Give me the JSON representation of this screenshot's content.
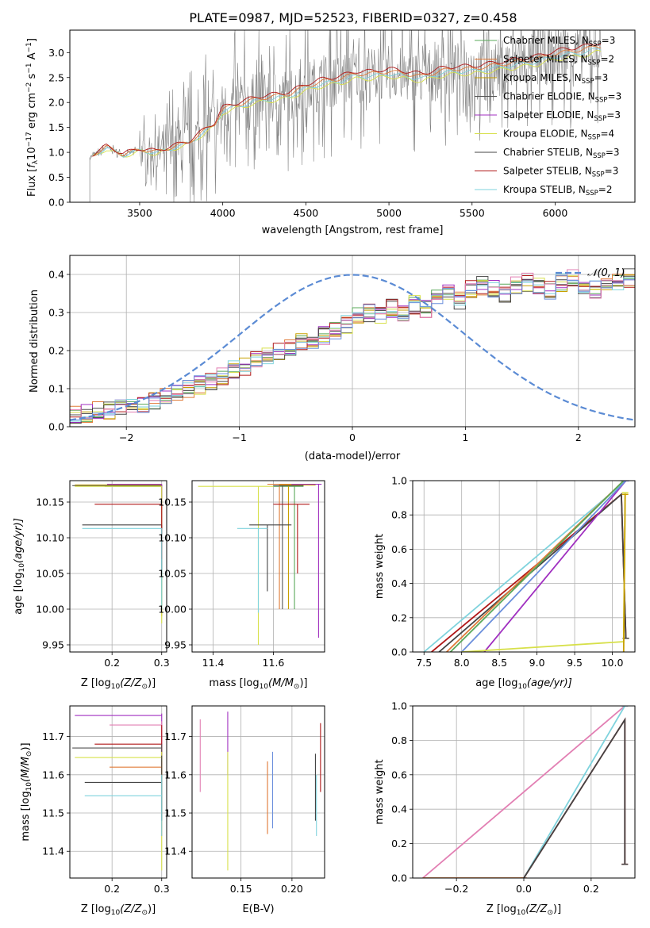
{
  "title": "PLATE=0987, MJD=52523, FIBERID=0327, z=0.458",
  "colors": {
    "Chabrier MILES": "#5aa85a",
    "Salpeter MILES": "#e07b39",
    "Kroupa MILES": "#c8a000",
    "Chabrier ELODIE": "#555555",
    "Salpeter ELODIE": "#a02fc0",
    "Kroupa ELODIE": "#d7e04a",
    "Chabrier STELIB": "#444444",
    "Salpeter STELIB": "#b01818",
    "Kroupa STELIB": "#7fd3dd",
    "data": "#808080",
    "normal": "#5b8bd4",
    "pink": "#e27fb3",
    "blue": "#6b8fdc"
  },
  "chart_data": [
    {
      "id": "spectrum",
      "type": "line",
      "ylabel": "Flux [f_λ10^-17 erg cm^-2 s^-1 A^-1]",
      "xlabel": "wavelength [Angstrom, rest frame]",
      "xlim": [
        3080,
        6480
      ],
      "ylim": [
        0,
        3.45
      ],
      "xticks": [
        3500,
        4000,
        4500,
        5000,
        5500,
        6000
      ],
      "yticks": [
        0.0,
        0.5,
        1.0,
        1.5,
        2.0,
        2.5,
        3.0
      ],
      "grid": false,
      "legend_position": "top-right",
      "legend": [
        {
          "label": "Chabrier MILES, N_SSP=3",
          "main": "Chabrier MILES, N",
          "sub": "SSP",
          "tail": "=3",
          "key": "Chabrier MILES"
        },
        {
          "label": "Salpeter MILES, N_SSP=2",
          "main": "Salpeter MILES, N",
          "sub": "SSP",
          "tail": "=2",
          "key": "Salpeter MILES"
        },
        {
          "label": "Kroupa MILES, N_SSP=3",
          "main": "Kroupa MILES, N",
          "sub": "SSP",
          "tail": "=3",
          "key": "Kroupa MILES"
        },
        {
          "label": "Chabrier ELODIE, N_SSP=3",
          "main": "Chabrier ELODIE, N",
          "sub": "SSP",
          "tail": "=3",
          "key": "Chabrier ELODIE"
        },
        {
          "label": "Salpeter ELODIE, N_SSP=3",
          "main": "Salpeter ELODIE, N",
          "sub": "SSP",
          "tail": "=3",
          "key": "Salpeter ELODIE"
        },
        {
          "label": "Kroupa ELODIE, N_SSP=4",
          "main": "Kroupa ELODIE, N",
          "sub": "SSP",
          "tail": "=4",
          "key": "Kroupa ELODIE"
        },
        {
          "label": "Chabrier STELIB, N_SSP=3",
          "main": "Chabrier STELIB, N",
          "sub": "SSP",
          "tail": "=3",
          "key": "Chabrier STELIB"
        },
        {
          "label": "Salpeter STELIB, N_SSP=3",
          "main": "Salpeter STELIB, N",
          "sub": "SSP",
          "tail": "=3",
          "key": "Salpeter STELIB"
        },
        {
          "label": "Kroupa STELIB, N_SSP=2",
          "main": "Kroupa STELIB, N",
          "sub": "SSP",
          "tail": "=2",
          "key": "Kroupa STELIB"
        }
      ],
      "continuum": [
        [
          3200,
          0.9
        ],
        [
          3300,
          1.1
        ],
        [
          3400,
          0.95
        ],
        [
          3500,
          1.05
        ],
        [
          3600,
          1.0
        ],
        [
          3700,
          1.1
        ],
        [
          3800,
          1.2
        ],
        [
          3900,
          1.45
        ],
        [
          3950,
          1.55
        ],
        [
          4000,
          1.85
        ],
        [
          4100,
          1.95
        ],
        [
          4200,
          2.05
        ],
        [
          4300,
          2.1
        ],
        [
          4400,
          2.15
        ],
        [
          4500,
          2.3
        ],
        [
          4600,
          2.4
        ],
        [
          4700,
          2.45
        ],
        [
          4800,
          2.55
        ],
        [
          4900,
          2.55
        ],
        [
          5000,
          2.6
        ],
        [
          5100,
          2.55
        ],
        [
          5200,
          2.5
        ],
        [
          5300,
          2.6
        ],
        [
          5400,
          2.65
        ],
        [
          5500,
          2.65
        ],
        [
          5600,
          2.7
        ],
        [
          5700,
          2.75
        ],
        [
          5800,
          2.8
        ],
        [
          5900,
          2.85
        ],
        [
          6000,
          2.95
        ],
        [
          6100,
          3.0
        ],
        [
          6200,
          3.05
        ],
        [
          6250,
          3.1
        ]
      ]
    },
    {
      "id": "residuals",
      "type": "histogram",
      "ylabel": "Normed distribution",
      "xlabel": "(data-model)/error",
      "xlim": [
        -2.5,
        2.5
      ],
      "ylim": [
        0,
        0.45
      ],
      "xticks": [
        -2,
        -1,
        0,
        1,
        2
      ],
      "yticks": [
        0.0,
        0.1,
        0.2,
        0.3,
        0.4
      ],
      "grid": true,
      "legend": [
        {
          "label": "N(0,1)",
          "key": "normal"
        }
      ],
      "bin_width": 0.1,
      "mean_hist": [
        0.03,
        0.035,
        0.045,
        0.04,
        0.05,
        0.055,
        0.06,
        0.07,
        0.085,
        0.09,
        0.1,
        0.11,
        0.12,
        0.13,
        0.15,
        0.16,
        0.18,
        0.19,
        0.2,
        0.21,
        0.22,
        0.23,
        0.24,
        0.25,
        0.27,
        0.29,
        0.3,
        0.29,
        0.31,
        0.3,
        0.32,
        0.31,
        0.34,
        0.35,
        0.33,
        0.36,
        0.37,
        0.36,
        0.35,
        0.37,
        0.38,
        0.37,
        0.36,
        0.38,
        0.39,
        0.37,
        0.36,
        0.37,
        0.38,
        0.39,
        0.38,
        0.37,
        0.36,
        0.35,
        0.34,
        0.33,
        0.34,
        0.32,
        0.31,
        0.3,
        0.31,
        0.29,
        0.27,
        0.28,
        0.26,
        0.25,
        0.24,
        0.23,
        0.22,
        0.21,
        0.2,
        0.19,
        0.18,
        0.17,
        0.16,
        0.15,
        0.14,
        0.13,
        0.12,
        0.11,
        0.11,
        0.1,
        0.1,
        0.09,
        0.09,
        0.08,
        0.08,
        0.08,
        0.075,
        0.07,
        0.07,
        0.065,
        0.06,
        0.06,
        0.055,
        0.05,
        0.05,
        0.045,
        0.04,
        0.04
      ]
    },
    {
      "id": "age-vs-z",
      "type": "errorbar",
      "xlabel": "Z [log10(Z/Z⊙)]",
      "ylabel": "age [log10(age/yr)]",
      "xlim": [
        0.115,
        0.31
      ],
      "ylim": [
        9.94,
        10.18
      ],
      "xticks": [
        0.2,
        0.3
      ],
      "yticks": [
        9.95,
        10.0,
        10.05,
        10.1,
        10.15
      ],
      "grid": true,
      "points": [
        {
          "key": "Chabrier MILES",
          "x": 0.3,
          "y": 10.172,
          "xerr": [
            0.185,
            0.3
          ],
          "yerr": [
            10.12,
            10.172
          ]
        },
        {
          "key": "Salpeter MILES",
          "x": 0.3,
          "y": 10.175,
          "xerr": [
            0.195,
            0.3
          ],
          "yerr": [
            10.11,
            10.175
          ]
        },
        {
          "key": "Kroupa MILES",
          "x": 0.3,
          "y": 10.174,
          "xerr": [
            0.125,
            0.3
          ],
          "yerr": [
            9.99,
            10.174
          ]
        },
        {
          "key": "Chabrier ELODIE",
          "x": 0.3,
          "y": 10.173,
          "xerr": [
            0.12,
            0.3
          ],
          "yerr": [
            10.0,
            10.173
          ]
        },
        {
          "key": "Salpeter ELODIE",
          "x": 0.3,
          "y": 10.175,
          "xerr": [
            0.19,
            0.3
          ],
          "yerr": [
            10.05,
            10.175
          ]
        },
        {
          "key": "Kroupa ELODIE",
          "x": 0.3,
          "y": 10.172,
          "xerr": [
            0.125,
            0.3
          ],
          "yerr": [
            9.98,
            10.172
          ]
        },
        {
          "key": "Chabrier STELIB",
          "x": 0.3,
          "y": 10.118,
          "xerr": [
            0.14,
            0.3
          ],
          "yerr": [
            10.05,
            10.118
          ]
        },
        {
          "key": "Salpeter STELIB",
          "x": 0.3,
          "y": 10.147,
          "xerr": [
            0.165,
            0.3
          ],
          "yerr": [
            10.07,
            10.147
          ]
        },
        {
          "key": "Kroupa STELIB",
          "x": 0.3,
          "y": 10.113,
          "xerr": [
            0.14,
            0.3
          ],
          "yerr": [
            10.0,
            10.113
          ]
        }
      ]
    },
    {
      "id": "age-vs-mass",
      "type": "errorbar",
      "xlabel": "mass [log10(M/M⊙)]",
      "ylabel": "",
      "xlim": [
        11.33,
        11.77
      ],
      "ylim": [
        9.94,
        10.18
      ],
      "xticks": [
        11.4,
        11.6
      ],
      "yticks": [
        9.95,
        10.0,
        10.05,
        10.1,
        10.15
      ],
      "grid": true,
      "points": [
        {
          "key": "Chabrier MILES",
          "x": 11.67,
          "y": 10.172,
          "xerr": [
            11.6,
            11.7
          ],
          "yerr": [
            10.0,
            10.172
          ]
        },
        {
          "key": "Salpeter MILES",
          "x": 11.62,
          "y": 10.175,
          "xerr": [
            11.58,
            11.68
          ],
          "yerr": [
            10.0,
            10.175
          ]
        },
        {
          "key": "Kroupa MILES",
          "x": 11.65,
          "y": 10.174,
          "xerr": [
            11.62,
            11.74
          ],
          "yerr": [
            10.0,
            10.174
          ]
        },
        {
          "key": "Chabrier ELODIE",
          "x": 11.63,
          "y": 10.173,
          "xerr": [
            11.6,
            11.7
          ],
          "yerr": [
            10.0,
            10.173
          ]
        },
        {
          "key": "Salpeter ELODIE",
          "x": 11.75,
          "y": 10.175,
          "xerr": [
            11.66,
            11.76
          ],
          "yerr": [
            9.96,
            10.175
          ]
        },
        {
          "key": "Kroupa ELODIE",
          "x": 11.55,
          "y": 10.172,
          "xerr": [
            11.35,
            11.6
          ],
          "yerr": [
            9.95,
            10.172
          ]
        },
        {
          "key": "Chabrier STELIB",
          "x": 11.58,
          "y": 10.118,
          "xerr": [
            11.52,
            11.66
          ],
          "yerr": [
            10.025,
            10.118
          ]
        },
        {
          "key": "Salpeter STELIB",
          "x": 11.68,
          "y": 10.147,
          "xerr": [
            11.6,
            11.72
          ],
          "yerr": [
            10.05,
            10.147
          ]
        },
        {
          "key": "Kroupa STELIB",
          "x": 11.55,
          "y": 10.113,
          "xerr": [
            11.48,
            11.58
          ],
          "yerr": [
            9.995,
            10.113
          ]
        }
      ]
    },
    {
      "id": "weight-vs-age",
      "type": "line",
      "xlabel": "age [log10(age/yr)]",
      "ylabel": "mass weight",
      "xlim": [
        7.35,
        10.3
      ],
      "ylim": [
        0,
        1.0
      ],
      "xticks": [
        7.5,
        8.0,
        8.5,
        9.0,
        9.5,
        10.0
      ],
      "yticks": [
        0.0,
        0.2,
        0.4,
        0.6,
        0.8,
        1.0
      ],
      "grid": true,
      "series": [
        {
          "key": "Kroupa STELIB",
          "x": [
            7.5,
            10.18
          ],
          "y": [
            0.0,
            1.0
          ]
        },
        {
          "key": "Salpeter STELIB",
          "x": [
            7.6,
            10.12,
            10.18
          ],
          "y": [
            0.0,
            0.92,
            0.08
          ]
        },
        {
          "key": "Chabrier STELIB",
          "x": [
            7.7,
            10.12,
            10.18
          ],
          "y": [
            0.0,
            0.92,
            0.08
          ]
        },
        {
          "key": "Salpeter MILES",
          "x": [
            7.8,
            10.15
          ],
          "y": [
            0.0,
            1.0
          ]
        },
        {
          "key": "Chabrier MILES",
          "x": [
            7.85,
            10.15
          ],
          "y": [
            0.0,
            1.0
          ]
        },
        {
          "key": "Salpeter ELODIE",
          "x": [
            8.3,
            10.18
          ],
          "y": [
            0.0,
            1.0
          ]
        },
        {
          "key": "blue",
          "x": [
            8.0,
            10.18
          ],
          "y": [
            0.0,
            1.0
          ]
        },
        {
          "key": "Kroupa ELODIE",
          "x": [
            8.0,
            10.15,
            10.17
          ],
          "y": [
            0.0,
            0.06,
            0.93
          ]
        },
        {
          "key": "Kroupa MILES",
          "x": [
            10.15,
            10.17
          ],
          "y": [
            0.0,
            0.92
          ]
        }
      ]
    },
    {
      "id": "mass-vs-z",
      "type": "errorbar",
      "xlabel": "Z [log10(Z/Z⊙)]",
      "ylabel": "mass [log10(M/M⊙)]",
      "xlim": [
        0.115,
        0.31
      ],
      "ylim": [
        11.33,
        11.78
      ],
      "xticks": [
        0.2,
        0.3
      ],
      "yticks": [
        11.4,
        11.5,
        11.6,
        11.7
      ],
      "grid": true,
      "points": [
        {
          "key": "Salpeter ELODIE",
          "x": 0.3,
          "y": 11.755,
          "xerr": [
            0.125,
            0.3
          ],
          "yerr": [
            11.6,
            11.76
          ]
        },
        {
          "key": "pink",
          "x": 0.3,
          "y": 11.73,
          "xerr": [
            0.195,
            0.3
          ],
          "yerr": [
            11.55,
            11.74
          ]
        },
        {
          "key": "Salpeter STELIB",
          "x": 0.3,
          "y": 11.68,
          "xerr": [
            0.165,
            0.3
          ],
          "yerr": [
            11.55,
            11.73
          ]
        },
        {
          "key": "Chabrier ELODIE",
          "x": 0.3,
          "y": 11.67,
          "xerr": [
            0.12,
            0.3
          ],
          "yerr": [
            11.5,
            11.68
          ]
        },
        {
          "key": "Kroupa ELODIE",
          "x": 0.3,
          "y": 11.645,
          "xerr": [
            0.125,
            0.3
          ],
          "yerr": [
            11.35,
            11.66
          ]
        },
        {
          "key": "Salpeter MILES",
          "x": 0.3,
          "y": 11.62,
          "xerr": [
            0.195,
            0.3
          ],
          "yerr": [
            11.44,
            11.635
          ]
        },
        {
          "key": "Chabrier STELIB",
          "x": 0.3,
          "y": 11.58,
          "xerr": [
            0.145,
            0.3
          ],
          "yerr": [
            11.48,
            11.65
          ]
        },
        {
          "key": "Kroupa STELIB",
          "x": 0.3,
          "y": 11.545,
          "xerr": [
            0.145,
            0.3
          ],
          "yerr": [
            11.44,
            11.6
          ]
        }
      ]
    },
    {
      "id": "mass-vs-ebv",
      "type": "errorbar",
      "xlabel": "E(B-V)",
      "ylabel": "",
      "xlim": [
        0.102,
        0.232
      ],
      "ylim": [
        11.33,
        11.78
      ],
      "xticks": [
        0.15,
        0.2
      ],
      "yticks": [
        11.4,
        11.5,
        11.6,
        11.7
      ],
      "grid": true,
      "points": [
        {
          "key": "pink",
          "x": 0.11,
          "y": 11.65,
          "yerr": [
            11.555,
            11.745
          ]
        },
        {
          "key": "Salpeter ELODIE",
          "x": 0.137,
          "y": 11.7,
          "yerr": [
            11.6,
            11.765
          ]
        },
        {
          "key": "Kroupa ELODIE",
          "x": 0.137,
          "y": 11.6,
          "yerr": [
            11.35,
            11.66
          ]
        },
        {
          "key": "Salpeter MILES",
          "x": 0.176,
          "y": 11.54,
          "yerr": [
            11.445,
            11.635
          ]
        },
        {
          "key": "blue",
          "x": 0.181,
          "y": 11.56,
          "yerr": [
            11.46,
            11.66
          ]
        },
        {
          "key": "Chabrier STELIB",
          "x": 0.223,
          "y": 11.59,
          "yerr": [
            11.48,
            11.655
          ]
        },
        {
          "key": "Kroupa STELIB",
          "x": 0.224,
          "y": 11.5,
          "yerr": [
            11.44,
            11.6
          ]
        },
        {
          "key": "Salpeter STELIB",
          "x": 0.228,
          "y": 11.64,
          "yerr": [
            11.555,
            11.735
          ]
        }
      ]
    },
    {
      "id": "weight-vs-z",
      "type": "line",
      "xlabel": "Z [log10(Z/Z⊙)]",
      "ylabel": "mass weight",
      "xlim": [
        -0.33,
        0.33
      ],
      "ylim": [
        0,
        1.0
      ],
      "xticks": [
        -0.2,
        0.0,
        0.2
      ],
      "yticks": [
        0.0,
        0.2,
        0.4,
        0.6,
        0.8,
        1.0
      ],
      "grid": true,
      "series": [
        {
          "key": "pink",
          "x": [
            -0.3,
            0.3
          ],
          "y": [
            0.0,
            1.0
          ]
        },
        {
          "key": "Salpeter MILES",
          "x": [
            -0.3,
            0.0
          ],
          "y": [
            0.0,
            0.0
          ]
        },
        {
          "key": "Kroupa STELIB",
          "x": [
            0.0,
            0.3
          ],
          "y": [
            0.0,
            1.0
          ]
        },
        {
          "key": "Salpeter STELIB",
          "x": [
            0.0,
            0.3,
            0.3
          ],
          "y": [
            0.0,
            0.92,
            0.08
          ]
        },
        {
          "key": "Chabrier STELIB",
          "x": [
            0.0,
            0.3,
            0.3
          ],
          "y": [
            0.0,
            0.92,
            0.08
          ]
        }
      ]
    }
  ]
}
